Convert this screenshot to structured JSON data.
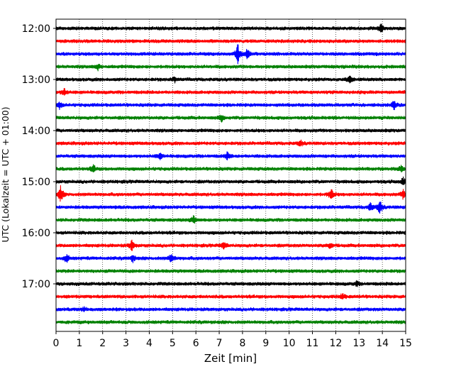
{
  "chart_data": {
    "type": "line",
    "title": "",
    "xlabel": "Zeit  [min]",
    "ylabel": "UTC (Lokalzeit = UTC + 01:00)",
    "xlim": [
      0,
      15
    ],
    "x_ticks": [
      0,
      1,
      2,
      3,
      4,
      5,
      6,
      7,
      8,
      9,
      10,
      11,
      12,
      13,
      14,
      15
    ],
    "y_tick_labels": [
      "12:00",
      "13:00",
      "14:00",
      "15:00",
      "16:00",
      "17:00"
    ],
    "grid": "vertical dotted lines at each minute",
    "trace_interval_min": 15,
    "row_start_times": [
      "12:00",
      "12:15",
      "12:30",
      "12:45",
      "13:00",
      "13:15",
      "13:30",
      "13:45",
      "14:00",
      "14:15",
      "14:30",
      "14:45",
      "15:00",
      "15:15",
      "15:30",
      "15:45",
      "16:00",
      "16:15",
      "16:30",
      "16:45",
      "17:00",
      "17:15",
      "17:30",
      "17:45"
    ],
    "row_colors": [
      "#000000",
      "#ff0000",
      "#0000ff",
      "#008000"
    ],
    "events": [
      {
        "row": 0,
        "minute": 13.95,
        "amp": 0.35
      },
      {
        "row": 2,
        "minute": 7.8,
        "amp": 0.9
      },
      {
        "row": 2,
        "minute": 8.2,
        "amp": 0.5
      },
      {
        "row": 3,
        "minute": 1.8,
        "amp": 0.25
      },
      {
        "row": 4,
        "minute": 12.6,
        "amp": 0.3
      },
      {
        "row": 4,
        "minute": 5.1,
        "amp": 0.2
      },
      {
        "row": 5,
        "minute": 0.35,
        "amp": 0.35
      },
      {
        "row": 6,
        "minute": 0.15,
        "amp": 0.3
      },
      {
        "row": 6,
        "minute": 14.5,
        "amp": 0.35
      },
      {
        "row": 7,
        "minute": 7.1,
        "amp": 0.3
      },
      {
        "row": 9,
        "minute": 10.5,
        "amp": 0.25
      },
      {
        "row": 10,
        "minute": 4.45,
        "amp": 0.3
      },
      {
        "row": 10,
        "minute": 7.35,
        "amp": 0.3
      },
      {
        "row": 11,
        "minute": 1.6,
        "amp": 0.3
      },
      {
        "row": 11,
        "minute": 14.8,
        "amp": 0.25
      },
      {
        "row": 12,
        "minute": 14.9,
        "amp": 0.35
      },
      {
        "row": 13,
        "minute": 0.2,
        "amp": 0.75
      },
      {
        "row": 13,
        "minute": 11.8,
        "amp": 0.55
      },
      {
        "row": 13,
        "minute": 14.9,
        "amp": 0.4
      },
      {
        "row": 14,
        "minute": 13.9,
        "amp": 0.6
      },
      {
        "row": 14,
        "minute": 13.5,
        "amp": 0.4
      },
      {
        "row": 15,
        "minute": 5.9,
        "amp": 0.35
      },
      {
        "row": 17,
        "minute": 3.25,
        "amp": 0.45
      },
      {
        "row": 17,
        "minute": 7.2,
        "amp": 0.35
      },
      {
        "row": 17,
        "minute": 11.75,
        "amp": 0.3
      },
      {
        "row": 18,
        "minute": 0.45,
        "amp": 0.35
      },
      {
        "row": 18,
        "minute": 3.3,
        "amp": 0.3
      },
      {
        "row": 18,
        "minute": 4.95,
        "amp": 0.45
      },
      {
        "row": 20,
        "minute": 12.9,
        "amp": 0.2
      },
      {
        "row": 21,
        "minute": 12.3,
        "amp": 0.25
      },
      {
        "row": 22,
        "minute": 1.2,
        "amp": 0.15
      }
    ]
  }
}
